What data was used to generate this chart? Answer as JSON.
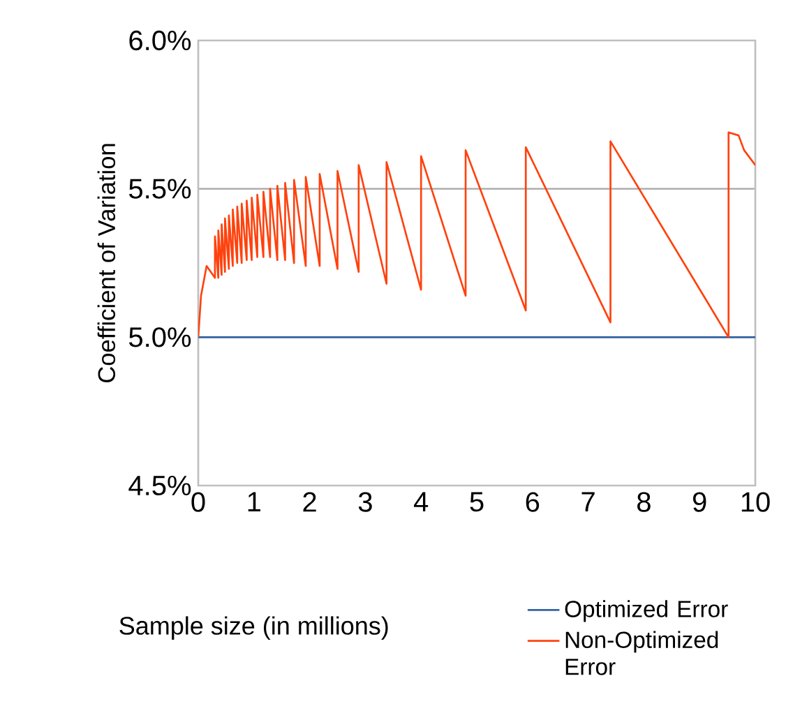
{
  "chart_data": {
    "type": "line",
    "xlabel": "Sample size (in millions)",
    "ylabel": "Coefficient of Variation",
    "xlim": [
      0,
      10
    ],
    "ylim": [
      4.5,
      6.0
    ],
    "xticks": [
      0,
      1,
      2,
      3,
      4,
      5,
      6,
      7,
      8,
      9,
      10
    ],
    "yticks": [
      {
        "value": 4.5,
        "label": "4.5%"
      },
      {
        "value": 5.0,
        "label": "5.0%"
      },
      {
        "value": 5.5,
        "label": "5.5%"
      },
      {
        "value": 6.0,
        "label": "6.0%"
      }
    ],
    "grid": "y",
    "legend": "bottom right",
    "marker": "none",
    "line_style": "solid",
    "series": [
      {
        "name": "Optimized Error",
        "color": "#3465a4",
        "x": [
          0,
          10
        ],
        "values": [
          5.0,
          5.0
        ]
      },
      {
        "name": "Non-Optimized Error",
        "color": "#ff420e",
        "x": [
          0,
          0.05,
          0.15,
          0.3,
          0.3,
          0.36,
          0.36,
          0.42,
          0.42,
          0.48,
          0.48,
          0.55,
          0.55,
          0.62,
          0.62,
          0.7,
          0.7,
          0.78,
          0.78,
          0.87,
          0.87,
          0.96,
          0.96,
          1.06,
          1.06,
          1.17,
          1.17,
          1.29,
          1.29,
          1.42,
          1.42,
          1.56,
          1.56,
          1.72,
          1.72,
          1.93,
          1.93,
          2.18,
          2.18,
          2.5,
          2.5,
          2.88,
          2.88,
          3.38,
          3.38,
          4.0,
          4.0,
          4.8,
          4.8,
          5.88,
          5.88,
          7.4,
          7.4,
          9.52,
          9.52,
          9.7,
          9.8,
          10
        ],
        "values": [
          5.0,
          5.14,
          5.24,
          5.2,
          5.34,
          5.2,
          5.36,
          5.21,
          5.38,
          5.22,
          5.4,
          5.23,
          5.41,
          5.24,
          5.43,
          5.25,
          5.44,
          5.25,
          5.45,
          5.26,
          5.46,
          5.26,
          5.47,
          5.27,
          5.48,
          5.27,
          5.49,
          5.27,
          5.5,
          5.26,
          5.51,
          5.26,
          5.52,
          5.25,
          5.53,
          5.24,
          5.54,
          5.24,
          5.55,
          5.23,
          5.56,
          5.22,
          5.58,
          5.18,
          5.59,
          5.16,
          5.61,
          5.14,
          5.63,
          5.09,
          5.64,
          5.05,
          5.66,
          5.0,
          5.69,
          5.68,
          5.63,
          5.58
        ]
      }
    ]
  }
}
